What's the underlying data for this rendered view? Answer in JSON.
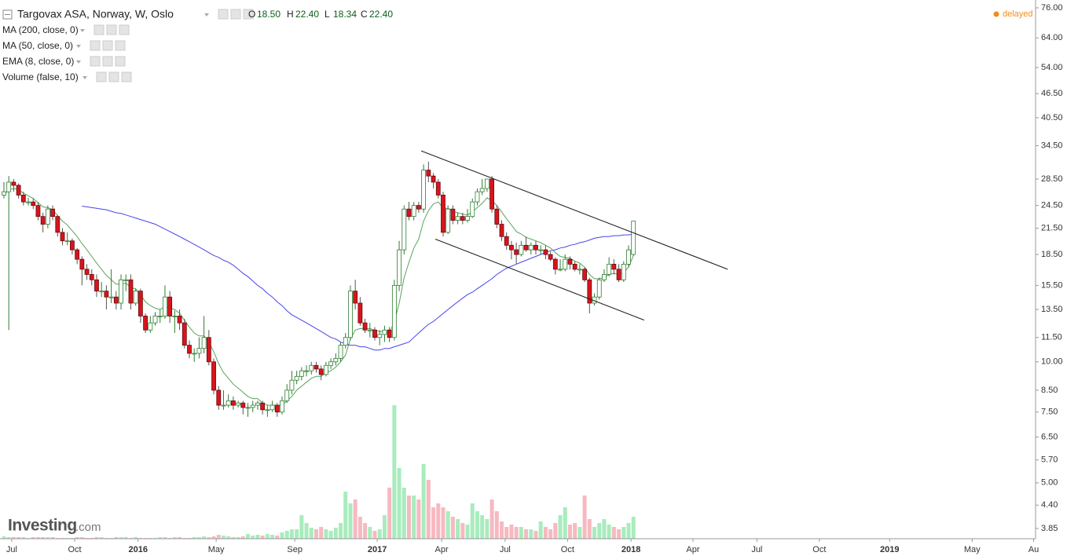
{
  "chart_data": {
    "type": "candlestick",
    "title": "Targovax ASA, Norway, W, Oslo",
    "ohlc": [
      [
        "O",
        "18.50"
      ],
      [
        "H",
        "22.40"
      ],
      [
        "L",
        "18.34"
      ],
      [
        "C",
        "22.40"
      ]
    ],
    "status": "delayed",
    "logo": {
      "name": "Investing",
      "suffix": ".com"
    },
    "indicators": [
      "MA (200, close, 0)"
    ],
    "log_scale": true,
    "grid": false,
    "up_color": "#2e7d32",
    "down_color": "#d8141c",
    "vol_up_color": "#a8ecbd",
    "vol_down_color": "#f7b9c1",
    "ylim": [
      3.63,
      79.5
    ],
    "yticks": [
      {
        "value": 76,
        "label": "76.00"
      },
      {
        "value": 64,
        "label": "64.00"
      },
      {
        "value": 54,
        "label": "54.00"
      },
      {
        "value": 46.5,
        "label": "46.50"
      },
      {
        "value": 40.5,
        "label": "40.50"
      },
      {
        "value": 34.5,
        "label": "34.50"
      },
      {
        "value": 28.5,
        "label": "28.50"
      },
      {
        "value": 24.5,
        "label": "24.50"
      },
      {
        "value": 21.5,
        "label": "21.50"
      },
      {
        "value": 18.5,
        "label": "18.50"
      },
      {
        "value": 15.5,
        "label": "15.50"
      },
      {
        "value": 13.5,
        "label": "13.50"
      },
      {
        "value": 11.5,
        "label": "11.50"
      },
      {
        "value": 10,
        "label": "10.00"
      },
      {
        "value": 8.5,
        "label": "8.50"
      },
      {
        "value": 7.5,
        "label": "7.50"
      },
      {
        "value": 6.5,
        "label": "6.50"
      },
      {
        "value": 5.7,
        "label": "5.70"
      },
      {
        "value": 5,
        "label": "5.00"
      },
      {
        "value": 4.4,
        "label": "4.40"
      },
      {
        "value": 3.85,
        "label": "3.85"
      }
    ],
    "xlim": [
      -0.8,
      211.4
    ],
    "xticks": [
      {
        "value": 1.6,
        "label": "Jul"
      },
      {
        "value": 14.5,
        "label": "Oct"
      },
      {
        "value": 27.5,
        "label": "2016"
      },
      {
        "value": 43.5,
        "label": "May"
      },
      {
        "value": 59.6,
        "label": "Sep"
      },
      {
        "value": 76.5,
        "label": "2017"
      },
      {
        "value": 89.7,
        "label": "Apr"
      },
      {
        "value": 102.7,
        "label": "Jul"
      },
      {
        "value": 115.5,
        "label": "Oct"
      },
      {
        "value": 128.5,
        "label": "2018"
      },
      {
        "value": 141.2,
        "label": "Apr"
      },
      {
        "value": 154.3,
        "label": "Jul"
      },
      {
        "value": 167.1,
        "label": "Oct"
      },
      {
        "value": 181.5,
        "label": "2019"
      },
      {
        "value": 198.4,
        "label": "May"
      },
      {
        "value": 211,
        "label": "Au"
      }
    ],
    "candles": [
      [
        26,
        28,
        25.5,
        26.5
      ],
      [
        26.5,
        29,
        12,
        28
      ],
      [
        28,
        28.5,
        26.5,
        27.5
      ],
      [
        27.5,
        27.8,
        25.5,
        26
      ],
      [
        26,
        26.5,
        24.5,
        25
      ],
      [
        25,
        25.6,
        24.5,
        25
      ],
      [
        25,
        25.5,
        24,
        24.5
      ],
      [
        24.5,
        25,
        22.5,
        23
      ],
      [
        23,
        23.5,
        21,
        22
      ],
      [
        22,
        24.5,
        21.5,
        24
      ],
      [
        24,
        24.5,
        22.5,
        23
      ],
      [
        23,
        23.2,
        20.5,
        21
      ],
      [
        21,
        21.5,
        19.5,
        20
      ],
      [
        20,
        21,
        19.5,
        20
      ],
      [
        20,
        20.3,
        18.5,
        19
      ],
      [
        19,
        19.2,
        17.5,
        18
      ],
      [
        18,
        18.3,
        15.5,
        17
      ],
      [
        17,
        17.5,
        16,
        16.5
      ],
      [
        16.5,
        17,
        15.5,
        16
      ],
      [
        16,
        16.5,
        14.5,
        15
      ],
      [
        15,
        15.8,
        14.5,
        15
      ],
      [
        15,
        15.5,
        13.5,
        14.5
      ],
      [
        14.5,
        17,
        14,
        14.5
      ],
      [
        14.5,
        15,
        13.5,
        14
      ],
      [
        14,
        16.5,
        13.5,
        16
      ],
      [
        16,
        16.5,
        15,
        16
      ],
      [
        16,
        16.5,
        13.5,
        14
      ],
      [
        14,
        15.2,
        13.8,
        15
      ],
      [
        15,
        15.2,
        12.5,
        13
      ],
      [
        13,
        13.2,
        11.8,
        12
      ],
      [
        12,
        13,
        11.8,
        12.5
      ],
      [
        12.5,
        13.3,
        12.3,
        13
      ],
      [
        13,
        13.5,
        12.5,
        13
      ],
      [
        13,
        15.5,
        12.8,
        14.5
      ],
      [
        14.5,
        15,
        12.5,
        13
      ],
      [
        13,
        13.4,
        11.8,
        13
      ],
      [
        13,
        13.5,
        12,
        12.5
      ],
      [
        12.5,
        12.8,
        10.8,
        11
      ],
      [
        11,
        11.3,
        10.2,
        10.5
      ],
      [
        10.5,
        10.8,
        10,
        10.5
      ],
      [
        10.5,
        11.5,
        10.2,
        10.8
      ],
      [
        10.8,
        13,
        10.5,
        11.5
      ],
      [
        11.5,
        12,
        9.8,
        10
      ],
      [
        10,
        10.2,
        8.3,
        8.5
      ],
      [
        8.5,
        8.7,
        7.6,
        7.8
      ],
      [
        7.8,
        8.5,
        7.6,
        7.8
      ],
      [
        7.8,
        8.3,
        7.7,
        8
      ],
      [
        8,
        8.2,
        7.6,
        7.8
      ],
      [
        7.8,
        8,
        7.7,
        7.9
      ],
      [
        7.9,
        8,
        7.4,
        7.7
      ],
      [
        7.7,
        7.9,
        7.3,
        7.7
      ],
      [
        7.7,
        8,
        7.5,
        7.8
      ],
      [
        7.8,
        8,
        7.6,
        7.9
      ],
      [
        7.9,
        8,
        7.4,
        7.6
      ],
      [
        7.6,
        7.8,
        7.3,
        7.6
      ],
      [
        7.6,
        8,
        7.5,
        7.8
      ],
      [
        7.8,
        7.9,
        7.3,
        7.5
      ],
      [
        7.5,
        8.2,
        7.4,
        8
      ],
      [
        8,
        8.8,
        7.9,
        8.5
      ],
      [
        8.5,
        9.5,
        8.3,
        9
      ],
      [
        9,
        9.5,
        8.8,
        9.2
      ],
      [
        9.2,
        9.7,
        9,
        9.5
      ],
      [
        9.5,
        9.8,
        9.2,
        9.5
      ],
      [
        9.5,
        10,
        9.3,
        9.8
      ],
      [
        9.8,
        10,
        9.4,
        9.6
      ],
      [
        9.6,
        9.8,
        9,
        9.3
      ],
      [
        9.3,
        10,
        9.2,
        9.8
      ],
      [
        9.8,
        10.2,
        9.6,
        10
      ],
      [
        10,
        10.5,
        9.8,
        10.2
      ],
      [
        10.2,
        11.2,
        10,
        11
      ],
      [
        11,
        11.8,
        10.8,
        11.5
      ],
      [
        11.5,
        15.5,
        11.3,
        15
      ],
      [
        15,
        16,
        13.5,
        14
      ],
      [
        14,
        14.5,
        12.3,
        12.5
      ],
      [
        12.5,
        12.8,
        11.8,
        12
      ],
      [
        12,
        12.5,
        11.5,
        12
      ],
      [
        12,
        12.2,
        11.3,
        11.5
      ],
      [
        11.5,
        12,
        11,
        11.7
      ],
      [
        11.7,
        12.3,
        11.2,
        12
      ],
      [
        12,
        12.2,
        11.2,
        11.5
      ],
      [
        11.5,
        16,
        11.3,
        15.5
      ],
      [
        15.5,
        20,
        15,
        19
      ],
      [
        19,
        24.5,
        18.5,
        24
      ],
      [
        24,
        25,
        22.5,
        23
      ],
      [
        23,
        25,
        22.5,
        24.5
      ],
      [
        24.5,
        25,
        23.5,
        24
      ],
      [
        24,
        31,
        23.5,
        30
      ],
      [
        30,
        31.5,
        28,
        29
      ],
      [
        29,
        29.5,
        27,
        28
      ],
      [
        28,
        28.5,
        25.5,
        26
      ],
      [
        26,
        26.5,
        20.5,
        21
      ],
      [
        21,
        24.5,
        20.8,
        24
      ],
      [
        24,
        24.5,
        22,
        22.5
      ],
      [
        22.5,
        23.5,
        22,
        23
      ],
      [
        23,
        23.5,
        22,
        22.5
      ],
      [
        22.5,
        24,
        22.2,
        23
      ],
      [
        23,
        25.5,
        22.8,
        25
      ],
      [
        25,
        27,
        24.5,
        26.5
      ],
      [
        26.5,
        28.5,
        26,
        27
      ],
      [
        27,
        28,
        26.5,
        28.5
      ],
      [
        28.5,
        29,
        23.5,
        24
      ],
      [
        24,
        24.5,
        21.5,
        22
      ],
      [
        22,
        22.5,
        20,
        20.5
      ],
      [
        20.5,
        21,
        19,
        19.5
      ],
      [
        19.5,
        20,
        18,
        19
      ],
      [
        19,
        19.8,
        17.5,
        18.5
      ],
      [
        18.5,
        20,
        18.3,
        19.5
      ],
      [
        19.5,
        20.5,
        18.8,
        19
      ],
      [
        19,
        19.8,
        18.5,
        19.5
      ],
      [
        19.5,
        20,
        18.5,
        19
      ],
      [
        19,
        19.5,
        18.5,
        19
      ],
      [
        19,
        19.5,
        18,
        18.5
      ],
      [
        18.5,
        18.8,
        17.8,
        18
      ],
      [
        18,
        18.2,
        16.5,
        17
      ],
      [
        17,
        18,
        16.8,
        17
      ],
      [
        17,
        18.5,
        16.8,
        18
      ],
      [
        18,
        18.3,
        17,
        17.5
      ],
      [
        17.5,
        17.8,
        16.8,
        17
      ],
      [
        17,
        17.5,
        16.5,
        17
      ],
      [
        17,
        17.2,
        15.8,
        16
      ],
      [
        16,
        16.2,
        13.2,
        14
      ],
      [
        14,
        14.8,
        13.8,
        14.5
      ],
      [
        14.5,
        16.2,
        14.3,
        16
      ],
      [
        16,
        17,
        15.8,
        16.5
      ],
      [
        16.5,
        18.2,
        16.3,
        17.5
      ],
      [
        17.5,
        18,
        16.5,
        17
      ],
      [
        17,
        17.5,
        15.8,
        16
      ],
      [
        16,
        17.8,
        15.8,
        17.5
      ],
      [
        17.5,
        19.5,
        17.2,
        19
      ],
      [
        18.5,
        22.4,
        18.34,
        22.4
      ]
    ],
    "volume": {
      "name": "Volume (false, 10)",
      "values": [
        3,
        2,
        2,
        2,
        2,
        1,
        2,
        2,
        2,
        2,
        2,
        1,
        1,
        1,
        1,
        2,
        2,
        1,
        1,
        2,
        2,
        1,
        1,
        2,
        2,
        2,
        1,
        2,
        1,
        1,
        1,
        1,
        2,
        2,
        1,
        2,
        2,
        1,
        1,
        2,
        2,
        3,
        2,
        3,
        5,
        4,
        3,
        2,
        2,
        3,
        6,
        4,
        5,
        4,
        6,
        5,
        4,
        8,
        10,
        12,
        12,
        30,
        20,
        14,
        12,
        15,
        12,
        10,
        14,
        20,
        60,
        45,
        50,
        28,
        20,
        15,
        10,
        12,
        30,
        65,
        170,
        90,
        65,
        55,
        55,
        50,
        95,
        75,
        40,
        45,
        40,
        35,
        28,
        25,
        20,
        18,
        45,
        35,
        30,
        25,
        50,
        35,
        22,
        15,
        18,
        15,
        15,
        12,
        12,
        10,
        22,
        15,
        12,
        20,
        30,
        40,
        18,
        20,
        15,
        55,
        25,
        15,
        20,
        25,
        18,
        15,
        12,
        15,
        20,
        28
      ]
    },
    "series": [
      {
        "name": "MA (50, close, 0)",
        "color": "#4545ee",
        "values": [
          null,
          null,
          null,
          null,
          null,
          null,
          null,
          null,
          null,
          null,
          null,
          null,
          null,
          null,
          null,
          null,
          24.4,
          24.3,
          24.2,
          24.1,
          24,
          23.9,
          23.7,
          23.5,
          23.4,
          23.2,
          23,
          22.8,
          22.6,
          22.4,
          22.2,
          22,
          21.7,
          21.4,
          21.1,
          20.8,
          20.5,
          20.2,
          19.9,
          19.6,
          19.3,
          19,
          18.7,
          18.4,
          18.2,
          17.9,
          17.7,
          17.4,
          17,
          16.6,
          16.3,
          15.9,
          15.5,
          15.2,
          14.8,
          14.5,
          14.1,
          13.8,
          13.4,
          13.1,
          12.9,
          12.7,
          12.5,
          12.3,
          12.1,
          11.9,
          11.7,
          11.5,
          11.4,
          11.2,
          11.1,
          11,
          11,
          10.9,
          10.9,
          10.8,
          10.7,
          10.7,
          10.8,
          10.8,
          10.9,
          11,
          11.1,
          11.2,
          11.5,
          11.8,
          12.1,
          12.4,
          12.6,
          12.9,
          13.2,
          13.5,
          13.8,
          14.1,
          14.4,
          14.7,
          14.9,
          15.2,
          15.5,
          15.8,
          16.1,
          16.5,
          16.8,
          17.1,
          17.3,
          17.5,
          17.7,
          17.9,
          18.1,
          18.3,
          18.5,
          18.7,
          18.9,
          19,
          19.2,
          19.3,
          19.5,
          19.6,
          19.8,
          19.9,
          20.1,
          20.3,
          20.4,
          20.5,
          20.5,
          20.6,
          20.6,
          20.7,
          20.7,
          20.8
        ]
      },
      {
        "name": "EMA (8, close, 0)",
        "color": "#5aa35a",
        "values": [
          26,
          26.8,
          27,
          26.8,
          26.3,
          25.9,
          25.5,
          24.9,
          24.3,
          24.2,
          23.9,
          23.1,
          22.4,
          21.9,
          21.2,
          20.5,
          19.7,
          19,
          18.3,
          17.6,
          17,
          16.4,
          16,
          15.6,
          15.6,
          15.7,
          15.3,
          15.2,
          14.7,
          14.1,
          13.8,
          13.6,
          13.5,
          13.7,
          13.6,
          13.5,
          13.2,
          12.7,
          12.2,
          11.8,
          11.6,
          11.6,
          11.2,
          10.6,
          9.9,
          9.4,
          9.1,
          8.8,
          8.6,
          8.4,
          8.2,
          8.1,
          8.1,
          7.9,
          7.8,
          7.8,
          7.8,
          7.8,
          8,
          8.2,
          8.5,
          8.7,
          8.9,
          9.1,
          9.2,
          9.2,
          9.4,
          9.5,
          9.7,
          10,
          10.4,
          11.4,
          12,
          12.1,
          12.1,
          12.1,
          12,
          11.9,
          11.9,
          11.8,
          12.6,
          14,
          16.2,
          17.7,
          19.2,
          20.2,
          22.4,
          23.8,
          24.7,
          25,
          24.1,
          24.1,
          23.7,
          23.5,
          23.3,
          23.2,
          23.6,
          24.2,
          24.8,
          25.6,
          25.2,
          24.5,
          23.6,
          22.7,
          21.9,
          21.1,
          20.8,
          20.4,
          20.2,
          20,
          19.8,
          19.5,
          19.2,
          18.7,
          18.3,
          18.2,
          18.1,
          17.8,
          17.6,
          17.2,
          16.5,
          16.1,
          16.1,
          16.2,
          16.5,
          16.6,
          16.5,
          16.7,
          17.2,
          18.4
        ]
      }
    ],
    "trendlines": [
      [
        [
          85.5,
          33.5
        ],
        [
          148.3,
          17
        ]
      ],
      [
        [
          88.4,
          20.2
        ],
        [
          131.2,
          12.7
        ]
      ]
    ]
  }
}
